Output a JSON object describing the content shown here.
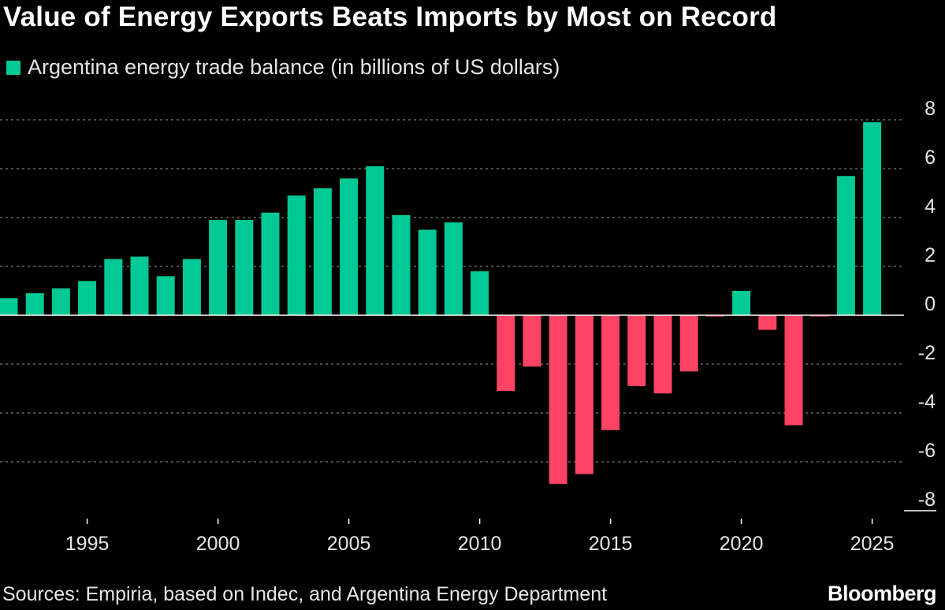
{
  "title": "Value of Energy Exports Beats Imports by Most on Record",
  "source": "Sources: Empiria, based on Indec, and Argentina Energy Department",
  "brand": "Bloomberg",
  "colors": {
    "background": "#000000",
    "positive": "#00c995",
    "negative": "#ff4364",
    "gridline": "#7a7a7a",
    "text": "#e6e6e6"
  },
  "chart_data": {
    "type": "bar",
    "title": "Value of Energy Exports Beats Imports by Most on Record",
    "xlabel": "",
    "ylabel": "",
    "legend": {
      "label": "Argentina energy trade balance (in billions of US dollars)",
      "placement": "top-left"
    },
    "ylim": [
      -8,
      8
    ],
    "yticks": [
      8,
      6,
      4,
      2,
      0,
      -2,
      -4,
      -6,
      -8
    ],
    "xticks": [
      1995,
      2000,
      2005,
      2010,
      2015,
      2020,
      2025
    ],
    "grid": true,
    "x": [
      1992,
      1993,
      1994,
      1995,
      1996,
      1997,
      1998,
      1999,
      2000,
      2001,
      2002,
      2003,
      2004,
      2005,
      2006,
      2007,
      2008,
      2009,
      2010,
      2011,
      2012,
      2013,
      2014,
      2015,
      2016,
      2017,
      2018,
      2019,
      2020,
      2021,
      2022,
      2023,
      2024,
      2025
    ],
    "values": [
      0.7,
      0.9,
      1.1,
      1.4,
      2.3,
      2.4,
      1.6,
      2.3,
      3.9,
      3.9,
      4.2,
      4.9,
      5.2,
      5.6,
      6.1,
      4.1,
      3.5,
      3.8,
      1.8,
      -3.1,
      -2.1,
      -6.9,
      -6.5,
      -4.7,
      -2.9,
      -3.2,
      -2.3,
      -0.05,
      1.0,
      -0.6,
      -4.5,
      -0.05,
      5.7,
      7.9
    ]
  }
}
